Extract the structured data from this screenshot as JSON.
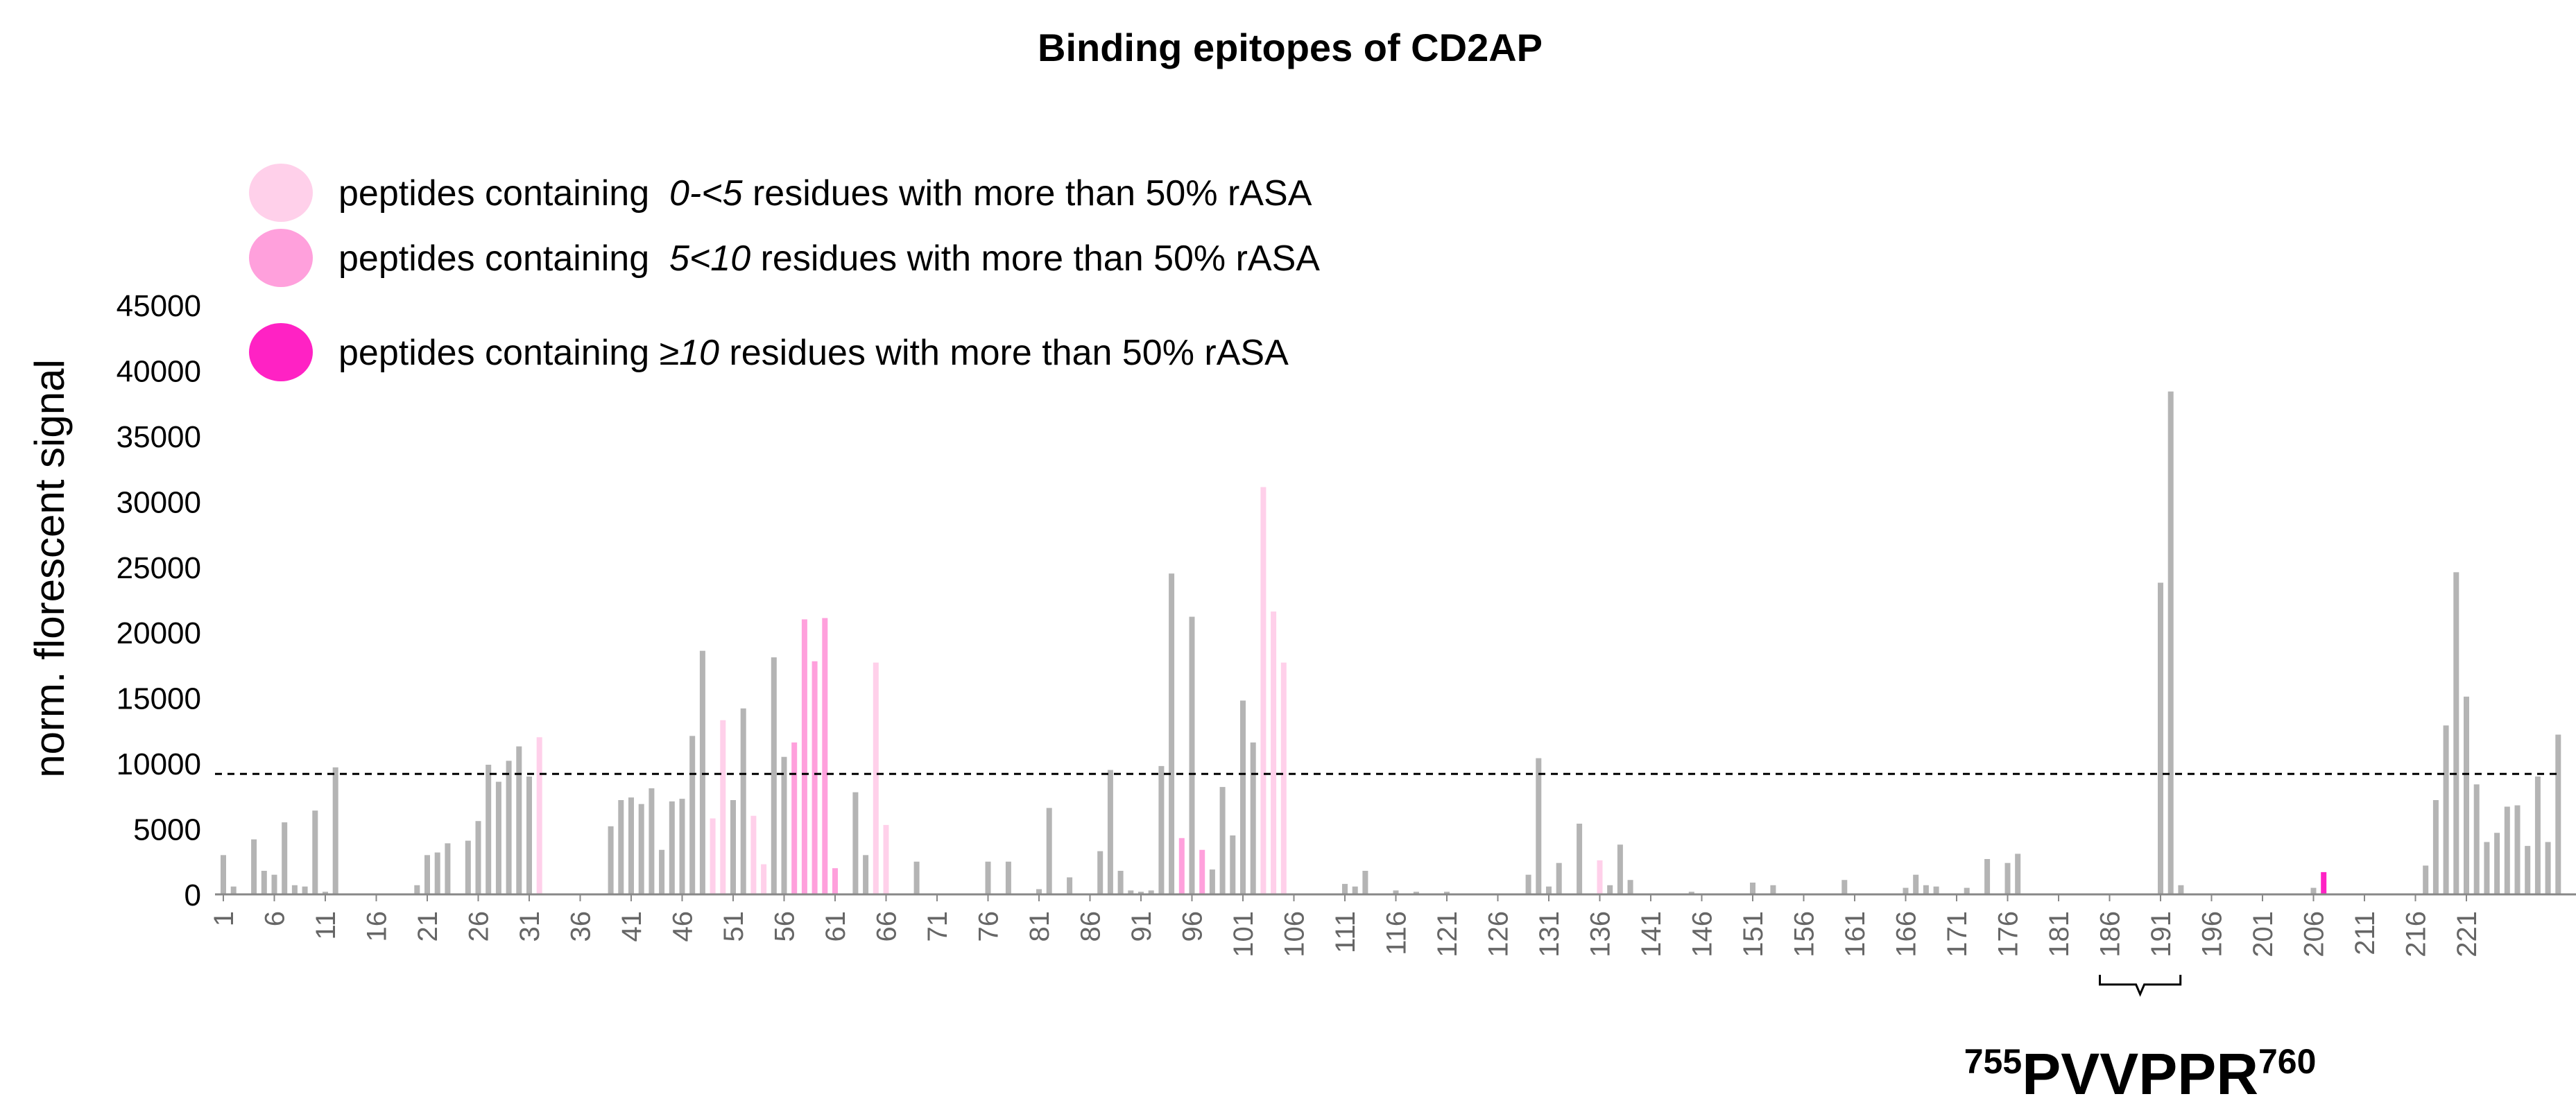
{
  "chart_data": {
    "type": "bar",
    "title": "Binding epitopes of CD2AP",
    "ylabel": "norm. florescent signal",
    "xlabel": "",
    "ylim": [
      0,
      45000
    ],
    "yticks": [
      0,
      5000,
      10000,
      15000,
      20000,
      25000,
      30000,
      35000,
      40000,
      45000
    ],
    "ytick_labels": [
      "0",
      "5000",
      "10000",
      "15000",
      "20000",
      "25000",
      "30000",
      "35000",
      "40000",
      "45000"
    ],
    "xtick_labels": [
      "1",
      "6",
      "11",
      "16",
      "21",
      "26",
      "31",
      "36",
      "41",
      "46",
      "51",
      "56",
      "61",
      "66",
      "71",
      "76",
      "81",
      "86",
      "91",
      "96",
      "101",
      "106",
      "111",
      "116",
      "121",
      "126",
      "131",
      "136",
      "141",
      "146",
      "151",
      "156",
      "161",
      "166",
      "171",
      "176",
      "181",
      "186",
      "191",
      "196",
      "201",
      "206",
      "211",
      "216",
      "221"
    ],
    "threshold": 9200,
    "legend": [
      {
        "label_prefix": "peptides containing  ",
        "label_italic": "0-<5",
        "label_suffix": " residues with more than 50% rASA",
        "color": "#ffd0ea"
      },
      {
        "label_prefix": "peptides containing  ",
        "label_italic": "5<10",
        "label_suffix": " residues with more than 50% rASA",
        "color": "#ffa0dc"
      },
      {
        "label_prefix": "peptides containing ≥",
        "label_italic": "10",
        "label_suffix": " residues with more than 50% rASA",
        "color": "#ff22c4"
      }
    ],
    "annotation": {
      "sup_start": "755",
      "main": "PVVPPR",
      "sup_end": "760",
      "from_peptide": 186,
      "to_peptide": 192
    },
    "colors": {
      "gray": "#b4b4b4",
      "lightgray": "#d0d0d0",
      "light": "#ffd0ea",
      "medium": "#ffa0dc",
      "dark": "#ff22c4",
      "axis": "#888888"
    },
    "series": [
      {
        "name": "norm. florescent signal",
        "values": [
          3000,
          600,
          0,
          4200,
          1800,
          1500,
          5500,
          700,
          600,
          6400,
          200,
          9700,
          0,
          0,
          0,
          0,
          0,
          0,
          0,
          700,
          3000,
          3200,
          3900,
          0,
          4100,
          5600,
          9900,
          8600,
          10200,
          11300,
          9000,
          12000,
          0,
          0,
          0,
          0,
          0,
          0,
          5200,
          7200,
          7400,
          6900,
          8100,
          3400,
          7100,
          7300,
          12100,
          18600,
          5800,
          13300,
          7200,
          14200,
          6000,
          2300,
          18100,
          10500,
          11600,
          21000,
          17800,
          21100,
          2000,
          0,
          7800,
          3000,
          17700,
          5300,
          0,
          0,
          2500,
          0,
          0,
          0,
          0,
          0,
          0,
          2500,
          0,
          2500,
          0,
          0,
          400,
          6600,
          0,
          1300,
          0,
          0,
          3300,
          9500,
          1800,
          300,
          200,
          300,
          9800,
          24500,
          4300,
          21200,
          3400,
          1900,
          8200,
          4500,
          14800,
          11600,
          31100,
          21600,
          17700,
          0,
          0,
          0,
          0,
          0,
          800,
          600,
          1800,
          0,
          0,
          300,
          0,
          200,
          0,
          0,
          200,
          0,
          0,
          0,
          0,
          0,
          0,
          0,
          1500,
          10400,
          600,
          2400,
          0,
          5400,
          0,
          2600,
          700,
          3800,
          1100,
          0,
          0,
          0,
          0,
          0,
          200,
          0,
          0,
          0,
          0,
          0,
          900,
          0,
          700,
          0,
          0,
          0,
          0,
          0,
          0,
          1100,
          0,
          0,
          0,
          0,
          0,
          500,
          1500,
          700,
          600,
          0,
          0,
          500,
          0,
          2700,
          0,
          2400,
          3100,
          0,
          0,
          0,
          0,
          0,
          0,
          0,
          0,
          0,
          0,
          0,
          0,
          0,
          23800,
          38400,
          700,
          0,
          0,
          0,
          0,
          0,
          0,
          0,
          0,
          0,
          0,
          0,
          0,
          500,
          1700,
          0,
          0,
          0,
          0,
          0,
          0,
          0,
          0,
          0,
          2200,
          7200,
          12900,
          24600,
          15100,
          8400,
          4000,
          4700,
          6700,
          6800,
          3700,
          9000,
          4000,
          12200,
          0,
          0
        ]
      }
    ],
    "colorkey": "ggggggggggggggggggggggggggggggglggggggggggggggggllggllggmmmmmlggllggggggggggggggggggggggggggggmgmgggggllllllggggggggggggggggggggggggggglggggggggggggggggggggggggggggggggggggggggggggggggggggggggggggggggggggggddgggggggggggggggggggggggggggmlmgggggggglgg"
  }
}
